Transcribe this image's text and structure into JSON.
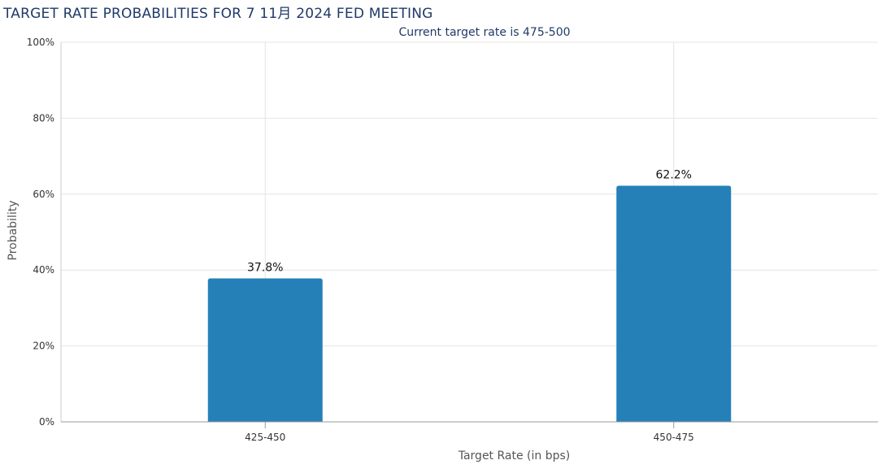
{
  "chart_data": {
    "type": "bar",
    "title": "TARGET RATE PROBABILITIES FOR 7 11月 2024 FED MEETING",
    "subtitle": "Current target rate is 475-500",
    "xlabel": "Target Rate (in bps)",
    "ylabel": "Probability",
    "categories": [
      "425-450",
      "450-475"
    ],
    "values": [
      37.8,
      62.2
    ],
    "data_labels": [
      "37.8%",
      "62.2%"
    ],
    "ylim": [
      0,
      100
    ],
    "yticks": [
      {
        "value": 0,
        "label": "0%"
      },
      {
        "value": 20,
        "label": "20%"
      },
      {
        "value": 40,
        "label": "40%"
      },
      {
        "value": 60,
        "label": "60%"
      },
      {
        "value": 80,
        "label": "80%"
      },
      {
        "value": 100,
        "label": "100%"
      }
    ],
    "bar_color": "#2580b8",
    "grid": true,
    "legend": "none"
  }
}
